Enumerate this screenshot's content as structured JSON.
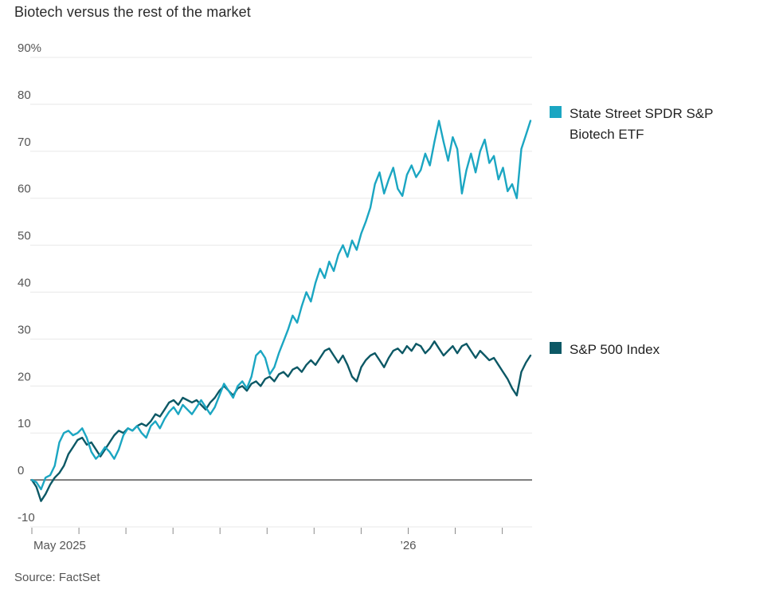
{
  "title": "Biotech versus the rest of the market",
  "source": "Source: FactSet",
  "legend": [
    {
      "label": "State Street SPDR S&P Biotech ETF",
      "color": "#1ba6c2"
    },
    {
      "label": "S&P 500 Index",
      "color": "#0c5865"
    }
  ],
  "chart_data": {
    "type": "line",
    "title": "Biotech versus the rest of the market",
    "grid": true,
    "legend_position": "right",
    "grid_color": "#e8e8e8",
    "zero_line": true,
    "zero_line_color": "#7a7a7a",
    "axis_text_color": "#555555",
    "tick_color": "#8a8a8a",
    "y_axis": {
      "min": -10,
      "max": 90,
      "step": 10,
      "unit": "%",
      "tick_labels": [
        "90%",
        "80",
        "70",
        "60",
        "50",
        "40",
        "30",
        "20",
        "10",
        "0",
        "-10"
      ]
    },
    "x_axis": {
      "months_span": 10.6,
      "tick_labels": [
        "May 2025",
        "",
        "",
        "",
        "",
        "",
        "",
        "",
        "’26",
        "",
        ""
      ]
    },
    "series": [
      {
        "name": "State Street SPDR S&P Biotech ETF",
        "color": "#1ba6c2",
        "values": [
          0,
          -0.5,
          -2,
          0.5,
          1,
          3,
          8,
          10,
          10.5,
          9.5,
          10,
          11,
          9,
          6,
          4.5,
          5.5,
          7,
          6,
          4.5,
          6.5,
          9.5,
          11,
          10.5,
          11.5,
          10,
          9,
          11.5,
          12.5,
          11,
          13,
          14.5,
          15.5,
          14,
          16,
          15,
          14,
          15.5,
          17,
          15.5,
          14,
          15.5,
          18,
          20.5,
          19,
          17.5,
          20,
          21,
          19.5,
          22,
          26.5,
          27.5,
          26,
          22.5,
          24,
          27,
          29.5,
          32,
          35,
          33.5,
          37,
          40,
          38,
          42,
          45,
          43,
          46.5,
          44.5,
          48,
          50,
          47.5,
          51,
          49,
          52.5,
          55,
          58,
          63,
          65.5,
          61,
          64,
          66.5,
          62,
          60.5,
          65,
          67,
          64.5,
          66,
          69.5,
          67,
          72,
          76.5,
          72,
          68,
          73,
          70.5,
          61,
          66,
          69.5,
          65.5,
          70,
          72.5,
          67.5,
          69,
          64,
          66.5,
          61.5,
          63,
          60,
          70.5,
          73.5,
          76.5
        ]
      },
      {
        "name": "S&P 500 Index",
        "color": "#0c5865",
        "values": [
          0,
          -1.5,
          -4.5,
          -3,
          -1,
          0.5,
          1.5,
          3,
          5.5,
          7,
          8.5,
          9,
          7.5,
          8,
          6.5,
          5,
          6.5,
          8,
          9.5,
          10.5,
          10,
          11,
          10.5,
          11.5,
          12,
          11.5,
          12.5,
          14,
          13.5,
          15,
          16.5,
          17,
          16,
          17.5,
          17,
          16.5,
          17,
          16,
          15,
          16.5,
          17.5,
          19,
          20,
          19,
          18,
          19.5,
          20,
          19,
          20.5,
          21,
          20,
          21.5,
          22,
          21,
          22.5,
          23,
          22,
          23.5,
          24,
          23,
          24.5,
          25.5,
          24.5,
          26,
          27.5,
          28,
          26.5,
          25,
          26.5,
          24.5,
          22,
          21,
          24,
          25.5,
          26.5,
          27,
          25.5,
          24,
          26,
          27.5,
          28,
          27,
          28.5,
          27.5,
          29,
          28.5,
          27,
          28,
          29.5,
          28,
          26.5,
          27.5,
          28.5,
          27,
          28.5,
          29,
          27.5,
          26,
          27.5,
          26.5,
          25.5,
          26,
          24.5,
          23,
          21.5,
          19.5,
          18,
          23,
          25,
          26.5
        ]
      }
    ]
  }
}
